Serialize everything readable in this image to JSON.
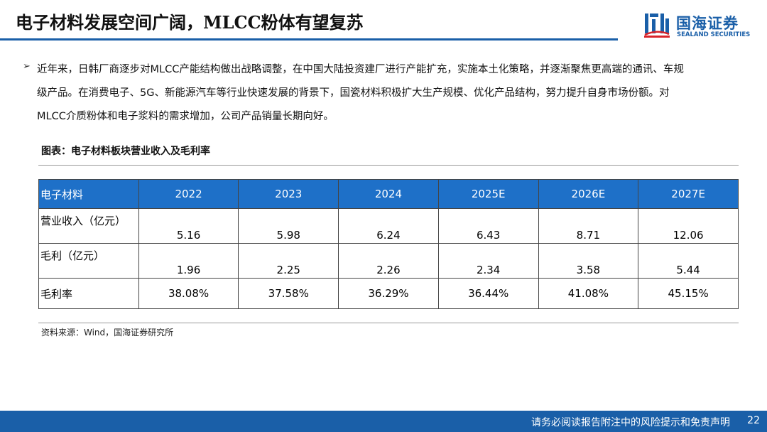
{
  "header": {
    "title": "电子材料发展空间广阔，MLCC粉体有望复苏"
  },
  "logo": {
    "cn": "国海证券",
    "en": "SEALAND SECURITIES",
    "color": "#1a5fa8"
  },
  "bullet_icon": "arrow-bullet-icon",
  "paragraph": {
    "lines": [
      "近年来，日韩厂商逐步对MLCC产能结构做出战略调整，在中国大陆投资建厂进行产能扩充，实施本土化策略，并逐渐聚焦更高端的通讯、车规",
      "级产品。在消费电子、5G、新能源汽车等行业快速发展的背景下，国瓷材料积极扩大生产规模、优化产品结构，努力提升自身市场份额。对",
      "MLCC介质粉体和电子浆料的需求增加，公司产品销量长期向好。"
    ]
  },
  "figure": {
    "title": "图表：电子材料板块营业收入及毛利率",
    "source": "资料来源：Wind，国海证券研究所"
  },
  "table": {
    "header_color": "#1e70c8",
    "columns": [
      "电子材料",
      "2022",
      "2023",
      "2024",
      "2025E",
      "2026E",
      "2027E"
    ],
    "rows": [
      {
        "label": "营业收入（亿元）",
        "values": [
          "5.16",
          "5.98",
          "6.24",
          "6.43",
          "8.71",
          "12.06"
        ]
      },
      {
        "label": "毛利（亿元）",
        "values": [
          "1.96",
          "2.25",
          "2.26",
          "2.34",
          "3.58",
          "5.44"
        ]
      },
      {
        "label": "毛利率",
        "values": [
          "38.08%",
          "37.58%",
          "36.29%",
          "36.44%",
          "41.08%",
          "45.15%"
        ]
      }
    ]
  },
  "footer": {
    "disclaimer": "请务必阅读报告附注中的风险提示和免责声明",
    "page": "22",
    "color": "#1a5fa8"
  }
}
